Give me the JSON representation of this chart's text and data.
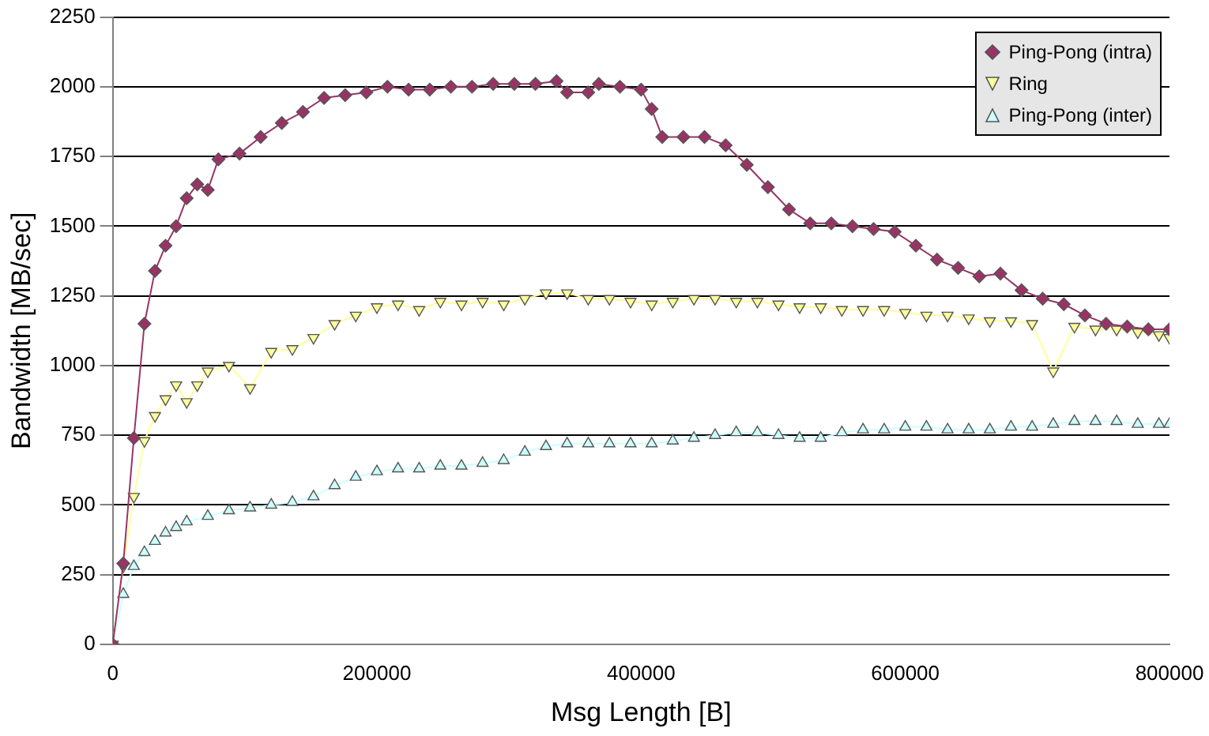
{
  "chart_data": {
    "type": "line",
    "xlabel": "Msg Length [B]",
    "ylabel": "Bandwidth [MB/sec]",
    "xlim": [
      0,
      800000
    ],
    "ylim": [
      0,
      2250
    ],
    "xticks": [
      0,
      200000,
      400000,
      600000,
      800000
    ],
    "yticks": [
      0,
      250,
      500,
      750,
      1000,
      1250,
      1500,
      1750,
      2000,
      2250
    ],
    "grid": "y",
    "legend": "top right",
    "series": [
      {
        "name": "Ping-Pong (intra)",
        "color": "#993366",
        "marker": "diamond",
        "x": [
          0,
          8000,
          16000,
          24000,
          32000,
          40000,
          48000,
          56000,
          64000,
          72000,
          80000,
          96000,
          112000,
          128000,
          144000,
          160000,
          176000,
          192000,
          208000,
          224000,
          240000,
          256000,
          272000,
          288000,
          304000,
          320000,
          336000,
          344000,
          360000,
          368000,
          384000,
          400000,
          408000,
          416000,
          432000,
          448000,
          464000,
          480000,
          496000,
          512000,
          528000,
          544000,
          560000,
          576000,
          592000,
          608000,
          624000,
          640000,
          656000,
          672000,
          688000,
          704000,
          720000,
          736000,
          752000,
          768000,
          784000,
          800000
        ],
        "values": [
          0,
          290,
          740,
          1150,
          1340,
          1430,
          1500,
          1600,
          1650,
          1630,
          1740,
          1760,
          1820,
          1870,
          1910,
          1960,
          1970,
          1980,
          2000,
          1990,
          1990,
          2000,
          2000,
          2010,
          2010,
          2010,
          2020,
          1980,
          1980,
          2010,
          2000,
          1990,
          1920,
          1820,
          1820,
          1820,
          1790,
          1720,
          1640,
          1560,
          1510,
          1510,
          1500,
          1490,
          1480,
          1430,
          1380,
          1350,
          1320,
          1330,
          1270,
          1240,
          1220,
          1180,
          1150,
          1140,
          1130,
          1130
        ]
      },
      {
        "name": "Ring",
        "color": "#ffff99",
        "marker": "triangle_down",
        "x": [
          0,
          8000,
          16000,
          24000,
          32000,
          40000,
          48000,
          56000,
          64000,
          72000,
          88000,
          104000,
          120000,
          136000,
          152000,
          168000,
          184000,
          200000,
          216000,
          232000,
          248000,
          264000,
          280000,
          296000,
          312000,
          328000,
          344000,
          360000,
          376000,
          392000,
          408000,
          424000,
          440000,
          456000,
          472000,
          488000,
          504000,
          520000,
          536000,
          552000,
          568000,
          584000,
          600000,
          616000,
          632000,
          648000,
          664000,
          680000,
          696000,
          712000,
          728000,
          744000,
          760000,
          776000,
          792000,
          800000
        ],
        "values": [
          0,
          280,
          530,
          730,
          820,
          880,
          930,
          870,
          930,
          980,
          1000,
          920,
          1050,
          1060,
          1100,
          1150,
          1180,
          1210,
          1220,
          1200,
          1230,
          1220,
          1230,
          1220,
          1240,
          1260,
          1260,
          1240,
          1240,
          1230,
          1220,
          1230,
          1240,
          1240,
          1230,
          1230,
          1220,
          1210,
          1210,
          1200,
          1200,
          1200,
          1190,
          1180,
          1180,
          1170,
          1160,
          1160,
          1150,
          980,
          1140,
          1130,
          1130,
          1120,
          1110,
          1100
        ]
      },
      {
        "name": "Ping-Pong (inter)",
        "color": "#ccffff",
        "marker": "triangle",
        "x": [
          0,
          8000,
          16000,
          24000,
          32000,
          40000,
          48000,
          56000,
          72000,
          88000,
          104000,
          120000,
          136000,
          152000,
          168000,
          184000,
          200000,
          216000,
          232000,
          248000,
          264000,
          280000,
          296000,
          312000,
          328000,
          344000,
          360000,
          376000,
          392000,
          408000,
          424000,
          440000,
          456000,
          472000,
          488000,
          504000,
          520000,
          536000,
          552000,
          568000,
          584000,
          600000,
          616000,
          632000,
          648000,
          664000,
          680000,
          696000,
          712000,
          728000,
          744000,
          760000,
          776000,
          792000,
          800000
        ],
        "values": [
          0,
          180,
          280,
          330,
          370,
          400,
          420,
          440,
          460,
          480,
          490,
          500,
          510,
          530,
          570,
          600,
          620,
          630,
          630,
          640,
          640,
          650,
          660,
          690,
          710,
          720,
          720,
          720,
          720,
          720,
          730,
          740,
          750,
          760,
          760,
          750,
          740,
          740,
          760,
          770,
          770,
          780,
          780,
          770,
          770,
          770,
          780,
          780,
          790,
          800,
          800,
          800,
          790,
          790,
          790
        ]
      }
    ]
  }
}
